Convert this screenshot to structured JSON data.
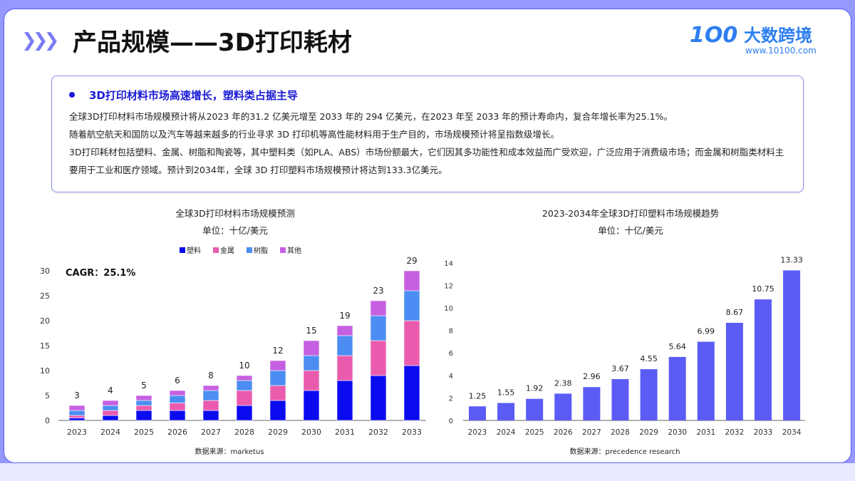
{
  "header": {
    "title": "产品规模——3D打印耗材",
    "logo_text": "大数跨境",
    "logo_mark": "1O0",
    "logo_url": "www.10100.com"
  },
  "summary": {
    "heading": "3D打印材料市场高速增长，塑料类占据主导",
    "p1": "全球3D打印材料市场规模预计将从2023 年的31.2 亿美元增至 2033 年的 294 亿美元，在2023 年至 2033 年的预计寿命内，复合年增长率为25.1%。",
    "p2": "随着航空航天和国防以及汽车等越来越多的行业寻求 3D 打印机等高性能材料用于生产目的，市场规模预计将呈指数级增长。",
    "p3": "3D打印耗材包括塑料、金属、树脂和陶瓷等，其中塑料类（如PLA、ABS）市场份额最大，它们因其多功能性和成本效益而广受欢迎，广泛应用于消费级市场；而金属和树脂类材料主要用于工业和医疗领域。预计到2034年，全球 3D 打印塑料市场规模预计将达到133.3亿美元。"
  },
  "chart_data": [
    {
      "type": "bar",
      "stacked": true,
      "title": "全球3D打印材料市场规模预测",
      "subtitle": "单位：十亿/美元",
      "annotation": "CAGR：25.1%",
      "source": "数据来源：marketus",
      "legend": "top",
      "categories": [
        "2023",
        "2024",
        "2025",
        "2026",
        "2027",
        "2028",
        "2029",
        "2030",
        "2031",
        "2032",
        "2033"
      ],
      "series": [
        {
          "name": "塑料",
          "color": "#0b0bf0",
          "values": [
            0.5,
            1,
            2,
            2,
            2,
            3,
            4,
            6,
            8,
            9,
            11
          ]
        },
        {
          "name": "金属",
          "color": "#ea5bae",
          "values": [
            0.5,
            1,
            1,
            1.5,
            2,
            3,
            3,
            4,
            5,
            7,
            9
          ]
        },
        {
          "name": "树脂",
          "color": "#4b8df2",
          "values": [
            1,
            1,
            1,
            1.5,
            2,
            2,
            3,
            3,
            4,
            5,
            6
          ]
        },
        {
          "name": "其他",
          "color": "#c660e2",
          "values": [
            1,
            1,
            1,
            1,
            1,
            1,
            2,
            3,
            2,
            3,
            4
          ]
        }
      ],
      "totals_labels": [
        "3",
        "4",
        "5",
        "6",
        "8",
        "10",
        "12",
        "15",
        "19",
        "23",
        "29"
      ],
      "yticks": [
        0,
        5,
        10,
        15,
        20,
        25,
        30
      ],
      "ylim": [
        0,
        30
      ]
    },
    {
      "type": "bar",
      "title": "2023-2034年全球3D打印塑料市场规模趋势",
      "subtitle": "单位：十亿/美元",
      "source": "数据来源：precedence research",
      "color": "#5b5cf6",
      "categories": [
        "2023",
        "2024",
        "2025",
        "2026",
        "2027",
        "2028",
        "2029",
        "2030",
        "2031",
        "2032",
        "2033",
        "2034"
      ],
      "values": [
        1.25,
        1.55,
        1.92,
        2.38,
        2.96,
        3.67,
        4.55,
        5.64,
        6.99,
        8.67,
        10.75,
        13.33
      ],
      "labels": [
        "1.25",
        "1.55",
        "1.92",
        "2.38",
        "2.96",
        "3.67",
        "4.55",
        "5.64",
        "6.99",
        "8.67",
        "10.75",
        "13.33"
      ],
      "yticks": [
        0,
        2,
        4,
        6,
        8,
        10,
        12,
        14
      ],
      "ylim": [
        0,
        14
      ]
    }
  ]
}
